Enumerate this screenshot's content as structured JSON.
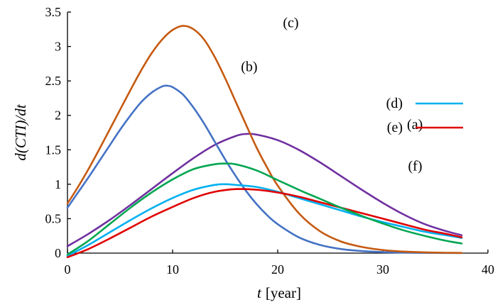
{
  "chart_data": {
    "type": "line",
    "title": "",
    "xlabel_var": "t",
    "xlabel_unit": "[year]",
    "ylabel": "d(CTI)/dt",
    "xlim": [
      0,
      40
    ],
    "ylim": [
      0,
      3.5
    ],
    "x_ticks": [
      0,
      10,
      20,
      30,
      40
    ],
    "x_tick_labels": [
      "0",
      "10",
      "20",
      "30",
      "40"
    ],
    "y_ticks": [
      0,
      0.5,
      1,
      1.5,
      2,
      2.5,
      3,
      3.5
    ],
    "y_tick_labels": [
      "0",
      "0.5",
      "1",
      "1.5",
      "2",
      "2.5",
      "3",
      "3.5"
    ],
    "grid": false,
    "legend": {
      "placement": "right",
      "entries": [
        {
          "label": "(d)",
          "series": "d"
        },
        {
          "label": "(e)",
          "series": "e"
        }
      ]
    },
    "series": [
      {
        "id": "a",
        "color": "#7030A0",
        "x": [
          0,
          2,
          4,
          6,
          8,
          10,
          12,
          14,
          16,
          17,
          18,
          20,
          22,
          24,
          26,
          28,
          30,
          32,
          34,
          36,
          37.5
        ],
        "y": [
          0.1,
          0.28,
          0.48,
          0.7,
          0.93,
          1.16,
          1.38,
          1.57,
          1.7,
          1.73,
          1.72,
          1.64,
          1.5,
          1.32,
          1.12,
          0.92,
          0.73,
          0.56,
          0.42,
          0.32,
          0.26
        ]
      },
      {
        "id": "b",
        "color": "#4472C4",
        "x": [
          0,
          1,
          2,
          3,
          4,
          5,
          6,
          7,
          8,
          9,
          9.5,
          10,
          11,
          12,
          13,
          14,
          15,
          16,
          17,
          18,
          19,
          20,
          22,
          24,
          26,
          28,
          30,
          32,
          34,
          36,
          37.5
        ],
        "y": [
          0.66,
          0.88,
          1.1,
          1.33,
          1.56,
          1.79,
          2.0,
          2.19,
          2.33,
          2.42,
          2.43,
          2.41,
          2.3,
          2.11,
          1.88,
          1.62,
          1.36,
          1.12,
          0.9,
          0.71,
          0.55,
          0.42,
          0.23,
          0.12,
          0.06,
          0.03,
          0.015,
          0.008,
          0.004,
          0.002,
          0.001
        ]
      },
      {
        "id": "c",
        "color": "#C55A11",
        "x": [
          0,
          1,
          2,
          3,
          4,
          5,
          6,
          7,
          8,
          9,
          10,
          11,
          12,
          13,
          14,
          15,
          16,
          17,
          18,
          19,
          20,
          22,
          24,
          26,
          28,
          30,
          32,
          34,
          36,
          37.5
        ],
        "y": [
          0.72,
          0.96,
          1.22,
          1.5,
          1.79,
          2.08,
          2.37,
          2.65,
          2.9,
          3.1,
          3.24,
          3.3,
          3.25,
          3.1,
          2.85,
          2.54,
          2.2,
          1.86,
          1.53,
          1.24,
          0.98,
          0.58,
          0.32,
          0.17,
          0.09,
          0.045,
          0.022,
          0.011,
          0.005,
          0.003
        ]
      },
      {
        "id": "d",
        "color": "#00B0F0",
        "x": [
          0,
          2,
          4,
          6,
          8,
          10,
          12,
          14,
          15,
          16,
          18,
          20,
          22,
          24,
          26,
          28,
          30,
          32,
          34,
          36,
          37.5
        ],
        "y": [
          -0.04,
          0.12,
          0.3,
          0.48,
          0.65,
          0.8,
          0.92,
          0.99,
          1.0,
          0.99,
          0.96,
          0.89,
          0.8,
          0.71,
          0.62,
          0.53,
          0.45,
          0.38,
          0.31,
          0.26,
          0.22
        ]
      },
      {
        "id": "e",
        "color": "#E00000",
        "x": [
          0,
          2,
          4,
          6,
          8,
          10,
          12,
          14,
          16,
          18,
          20,
          22,
          24,
          26,
          28,
          30,
          32,
          34,
          36,
          37.5
        ],
        "y": [
          -0.06,
          0.06,
          0.21,
          0.37,
          0.53,
          0.67,
          0.8,
          0.89,
          0.93,
          0.92,
          0.88,
          0.82,
          0.74,
          0.66,
          0.58,
          0.5,
          0.42,
          0.34,
          0.28,
          0.23
        ]
      },
      {
        "id": "f",
        "color": "#00A651",
        "x": [
          0,
          2,
          4,
          6,
          8,
          10,
          12,
          14,
          15,
          16,
          18,
          20,
          22,
          24,
          26,
          28,
          30,
          32,
          34,
          36,
          37.5
        ],
        "y": [
          -0.02,
          0.18,
          0.42,
          0.66,
          0.88,
          1.07,
          1.22,
          1.29,
          1.3,
          1.29,
          1.2,
          1.06,
          0.92,
          0.79,
          0.66,
          0.54,
          0.43,
          0.33,
          0.25,
          0.18,
          0.14
        ]
      }
    ],
    "annotations": [
      {
        "text": "(c)",
        "x": 20.5,
        "y": 3.28
      },
      {
        "text": "(b)",
        "x": 16.5,
        "y": 2.64
      },
      {
        "text": "(a)",
        "x": 32.3,
        "y": 1.8
      },
      {
        "text": "(f)",
        "x": 32.4,
        "y": 1.2
      }
    ]
  }
}
